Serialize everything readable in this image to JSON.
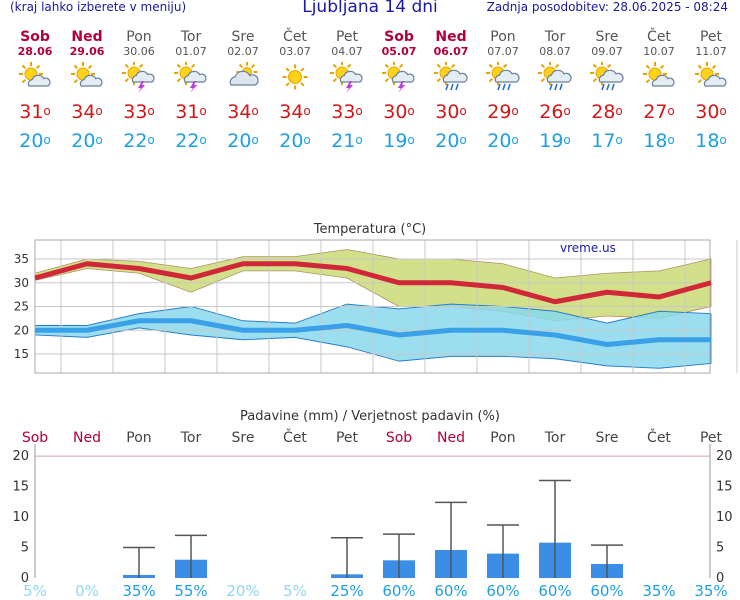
{
  "header": {
    "menu_hint": "(kraj lahko izberete v meniju)",
    "title": "Ljubljana 14 dni",
    "updated": "Zadnja posodobitev: 28.06.2025 - 08:24"
  },
  "days": [
    {
      "name": "Sob",
      "date": "28.06",
      "weekend": true,
      "icon": "sun-cloud-icon",
      "tmax": "31",
      "tmin": "20"
    },
    {
      "name": "Ned",
      "date": "29.06",
      "weekend": true,
      "icon": "sun-cloud-icon",
      "tmax": "34",
      "tmin": "20"
    },
    {
      "name": "Pon",
      "date": "30.06",
      "weekend": false,
      "icon": "sun-storm-icon",
      "tmax": "33",
      "tmin": "22"
    },
    {
      "name": "Tor",
      "date": "01.07",
      "weekend": false,
      "icon": "sun-storm-icon",
      "tmax": "31",
      "tmin": "22"
    },
    {
      "name": "Sre",
      "date": "02.07",
      "weekend": false,
      "icon": "cloud-sun-icon",
      "tmax": "34",
      "tmin": "20"
    },
    {
      "name": "Čet",
      "date": "03.07",
      "weekend": false,
      "icon": "sun-icon",
      "tmax": "34",
      "tmin": "20"
    },
    {
      "name": "Pet",
      "date": "04.07",
      "weekend": false,
      "icon": "sun-storm-icon",
      "tmax": "33",
      "tmin": "21"
    },
    {
      "name": "Sob",
      "date": "05.07",
      "weekend": true,
      "icon": "sun-storm-icon",
      "tmax": "30",
      "tmin": "19"
    },
    {
      "name": "Ned",
      "date": "06.07",
      "weekend": true,
      "icon": "sun-rain-icon",
      "tmax": "30",
      "tmin": "20"
    },
    {
      "name": "Pon",
      "date": "07.07",
      "weekend": false,
      "icon": "sun-rain-icon",
      "tmax": "29",
      "tmin": "20"
    },
    {
      "name": "Tor",
      "date": "08.07",
      "weekend": false,
      "icon": "sun-rain-icon",
      "tmax": "26",
      "tmin": "19"
    },
    {
      "name": "Sre",
      "date": "09.07",
      "weekend": false,
      "icon": "sun-rain-icon",
      "tmax": "28",
      "tmin": "17"
    },
    {
      "name": "Čet",
      "date": "10.07",
      "weekend": false,
      "icon": "sun-cloud-icon",
      "tmax": "27",
      "tmin": "18"
    },
    {
      "name": "Pet",
      "date": "11.07",
      "weekend": false,
      "icon": "sun-cloud-icon",
      "tmax": "30",
      "tmin": "18"
    }
  ],
  "colors": {
    "max_line": "#d02838",
    "min_line": "#3aa0e8",
    "max_band": "#d2e08a",
    "min_band": "#88d8ec",
    "overlap_band": "#9ccf74",
    "bar": "#3a8ee6",
    "whisker": "#555555",
    "weekend_text": "#b0003a",
    "prob_high": "#1ea0e0",
    "prob_low": "#8ed8f4"
  },
  "chart_data": [
    {
      "type": "line",
      "title": "Temperatura (°C)",
      "watermark": "vreme.us",
      "categories": [
        "Sob",
        "Ned",
        "Pon",
        "Tor",
        "Sre",
        "Čet",
        "Pet",
        "Sob",
        "Ned",
        "Pon",
        "Tor",
        "Sre",
        "Čet",
        "Pet"
      ],
      "ylim": [
        11,
        39
      ],
      "yticks": [
        15,
        20,
        25,
        30,
        35
      ],
      "grid": true,
      "series": [
        {
          "role": "max",
          "values": [
            31,
            34,
            33,
            31,
            34,
            34,
            33,
            30,
            30,
            29,
            26,
            28,
            27,
            30
          ],
          "band_upper": [
            32,
            35,
            34.5,
            33,
            35.5,
            35.5,
            37,
            35,
            35,
            34,
            31,
            32,
            32.5,
            35
          ],
          "band_lower": [
            30.5,
            33,
            32,
            28,
            32.5,
            32.5,
            31,
            25,
            25,
            24,
            22,
            23,
            22.5,
            25
          ]
        },
        {
          "role": "min",
          "values": [
            20,
            20,
            22,
            22,
            20,
            20,
            21,
            19,
            20,
            20,
            19,
            17,
            18,
            18
          ],
          "band_upper": [
            21,
            21,
            23.5,
            25,
            22,
            21.5,
            25.5,
            24.5,
            25.5,
            25,
            24,
            21.5,
            24,
            23.5
          ],
          "band_lower": [
            19,
            18.5,
            20.5,
            19,
            18,
            18.5,
            16.5,
            13.5,
            14.5,
            14.5,
            14,
            12.5,
            12,
            13
          ]
        }
      ]
    },
    {
      "type": "bar",
      "title": "Padavine (mm) / Verjetnost padavin (%)",
      "categories": [
        "Sob",
        "Ned",
        "Pon",
        "Tor",
        "Sre",
        "Čet",
        "Pet",
        "Sob",
        "Ned",
        "Pon",
        "Tor",
        "Sre",
        "Čet",
        "Pet"
      ],
      "ylim": [
        0,
        21
      ],
      "yticks": [
        0,
        5,
        10,
        15,
        20
      ],
      "values": [
        0,
        0,
        0.5,
        3.0,
        0,
        0,
        0.6,
        2.9,
        4.6,
        4.0,
        5.8,
        2.3,
        0,
        0
      ],
      "error_high": [
        0,
        0,
        5.0,
        7.0,
        0,
        0,
        6.6,
        7.2,
        12.4,
        8.7,
        16.0,
        5.4,
        0,
        0
      ],
      "probability_percent": [
        "5%",
        "0%",
        "35%",
        "55%",
        "20%",
        "5%",
        "25%",
        "60%",
        "60%",
        "60%",
        "60%",
        "60%",
        "35%",
        "35%"
      ]
    }
  ]
}
